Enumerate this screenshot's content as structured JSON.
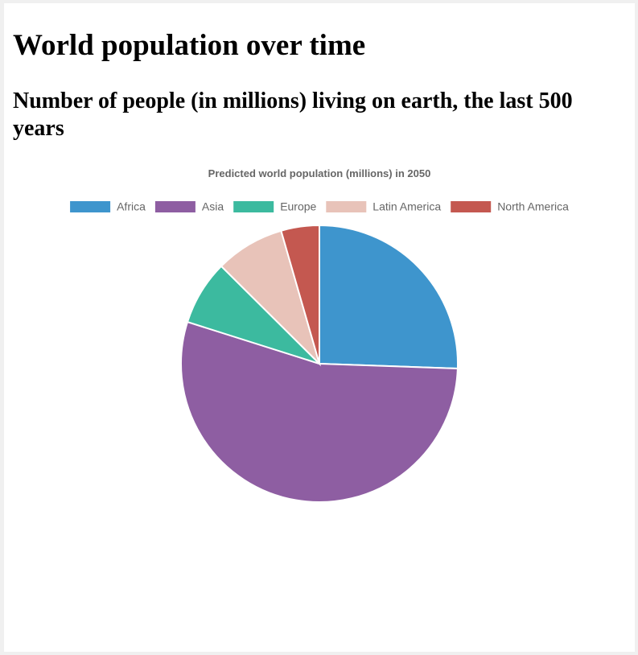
{
  "page": {
    "heading": "World population over time",
    "subheading": "Number of people (in millions) living on earth, the last 500 years"
  },
  "chart_data": {
    "type": "pie",
    "title": "Predicted world population (millions) in 2050",
    "legend_position": "top",
    "labels": [
      "Africa",
      "Asia",
      "Europe",
      "Latin America",
      "North America"
    ],
    "values": [
      2478,
      5267,
      734,
      784,
      433
    ],
    "colors": [
      "#3e95cd",
      "#8e5ea2",
      "#3cba9f",
      "#e8c3b9",
      "#c45850"
    ]
  }
}
